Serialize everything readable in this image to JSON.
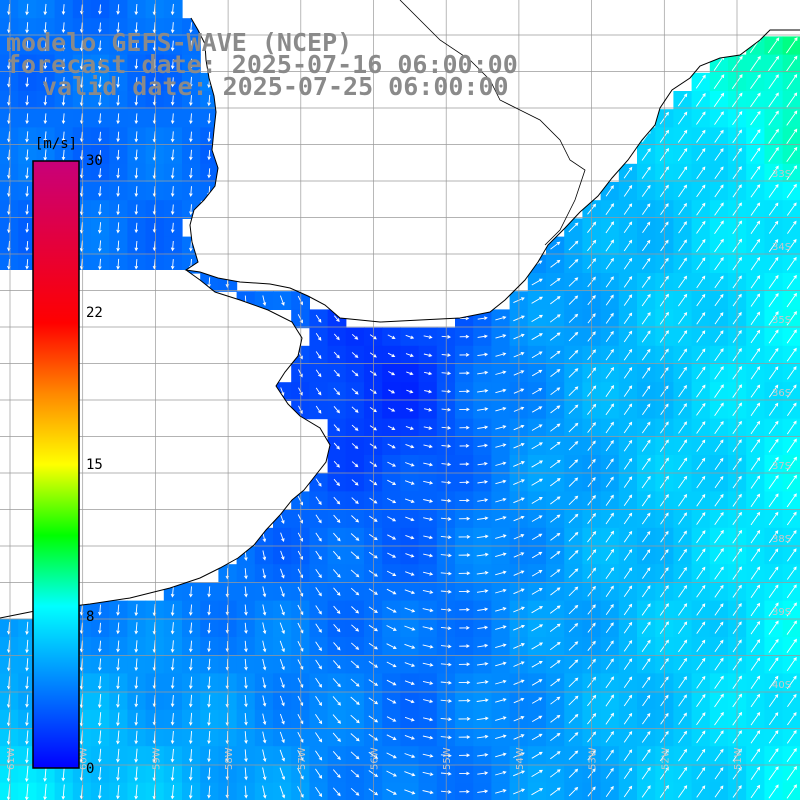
{
  "title": {
    "line1": "modelo GEFS-WAVE (NCEP)",
    "line2": "forecast date: 2025-07-16 06:00:00",
    "line3": "valid date: 2025-07-25 06:00:00"
  },
  "legend": {
    "unit": "[m/s]",
    "ticks": [
      "30",
      "22",
      "15",
      "8",
      "0"
    ],
    "tick_values": [
      30,
      22,
      15,
      8,
      0
    ],
    "stops": [
      {
        "v": 0,
        "c": "#0000ff"
      },
      {
        "v": 8,
        "c": "#00ffff"
      },
      {
        "v": 11.5,
        "c": "#00ff00"
      },
      {
        "v": 15,
        "c": "#ffff00"
      },
      {
        "v": 18.5,
        "c": "#ff8800"
      },
      {
        "v": 22,
        "c": "#ff0000"
      },
      {
        "v": 30,
        "c": "#c8007a"
      }
    ]
  },
  "map": {
    "lat_labels": [
      "33S",
      "34S",
      "35S",
      "36S",
      "37S",
      "38S",
      "39S",
      "40S"
    ],
    "lon_labels": [
      "61W",
      "60W",
      "59W",
      "58W",
      "57W",
      "56W",
      "55W",
      "54W",
      "53W",
      "52W",
      "51W"
    ],
    "land_color": "#ffffff",
    "grid_color": "#9a9a9a",
    "coast_color": "#000000",
    "vector_color": "#ffffff"
  }
}
